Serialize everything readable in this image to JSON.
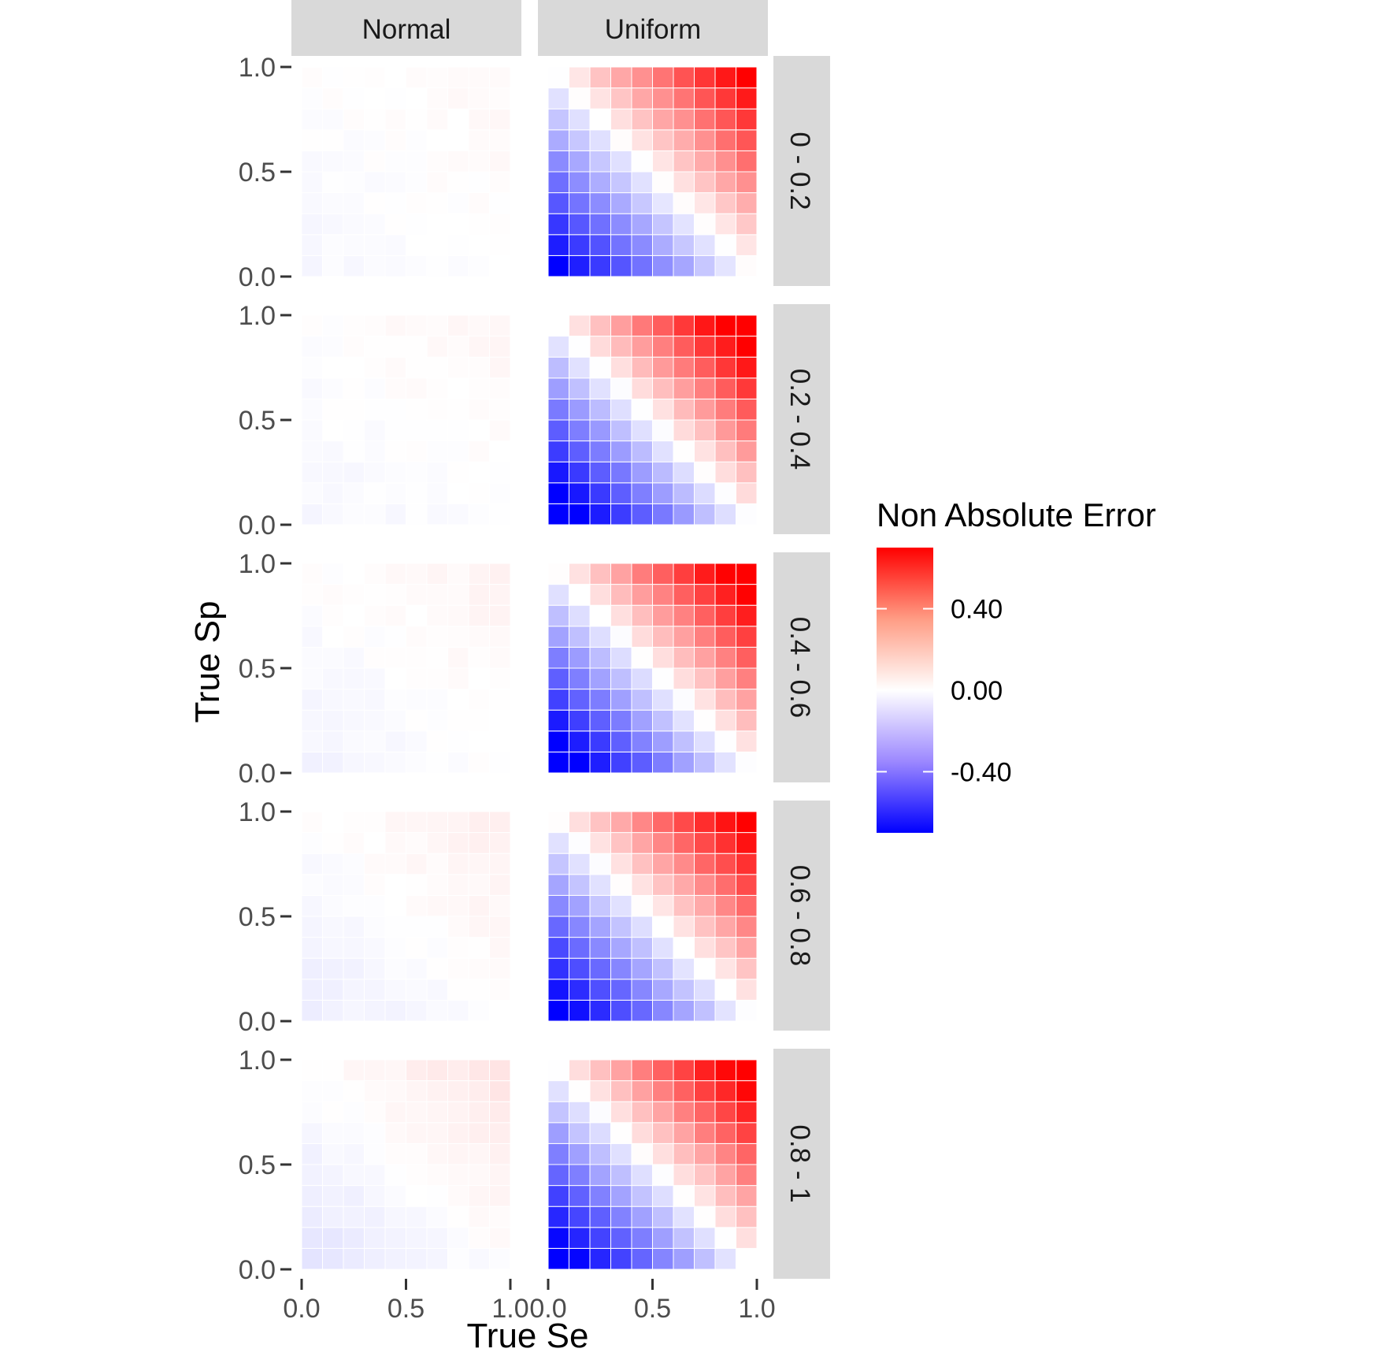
{
  "chart_data": {
    "type": "heatmap",
    "title": "",
    "xlabel": "True Se",
    "ylabel": "True Sp",
    "xlim": [
      0,
      1
    ],
    "ylim": [
      0,
      1
    ],
    "x_ticks": [
      "0.0",
      "0.5",
      "1.0"
    ],
    "y_ticks": [
      "0.0",
      "0.5",
      "1.0"
    ],
    "columns": [
      "Normal",
      "Uniform"
    ],
    "rows": [
      "0 - 0.2",
      "0.2 - 0.4",
      "0.4 - 0.6",
      "0.6 - 0.8",
      "0.8 - 1"
    ],
    "grid": false,
    "grid_size": 10,
    "se_centers": [
      0.05,
      0.15,
      0.25,
      0.35,
      0.45,
      0.55,
      0.65,
      0.75,
      0.85,
      0.95
    ],
    "sp_centers": [
      0.05,
      0.15,
      0.25,
      0.35,
      0.45,
      0.55,
      0.65,
      0.75,
      0.85,
      0.95
    ],
    "value_model": "Normal panels: error ≈ 0 (|e| ≤ 0.05); Uniform panels: error ≈ (Se + Sp - 1) × 0.8",
    "panels": [
      {
        "column": "Normal",
        "row": "0 - 0.2",
        "values_note": "near zero everywhere, faint pink top row"
      },
      {
        "column": "Normal",
        "row": "0.2 - 0.4",
        "values_note": "near zero, faint lavender bottom row"
      },
      {
        "column": "Normal",
        "row": "0.4 - 0.6",
        "values_note": "faint pink top rows, faint lavender bottom rows"
      },
      {
        "column": "Normal",
        "row": "0.6 - 0.8",
        "values_note": "pink top rows, lavender bottom-left"
      },
      {
        "column": "Normal",
        "row": "0.8 - 1",
        "values_note": "pink top-right, lavender bottom-left"
      },
      {
        "column": "Uniform",
        "row": "0 - 0.2",
        "values_note": "diagonal gradient from ≈ -0.45 (bottom-left) to ≈ +0.35 (top-right)"
      },
      {
        "column": "Uniform",
        "row": "0.2 - 0.4",
        "values_note": "diagonal gradient from ≈ -0.55 to ≈ +0.45"
      },
      {
        "column": "Uniform",
        "row": "0.4 - 0.6",
        "values_note": "diagonal gradient from ≈ -0.5 to ≈ +0.45"
      },
      {
        "column": "Uniform",
        "row": "0.6 - 0.8",
        "values_note": "diagonal gradient from ≈ -0.4 to ≈ +0.45"
      },
      {
        "column": "Uniform",
        "row": "0.8 - 1",
        "values_note": "diagonal gradient from ≈ -0.4 to ≈ +0.5"
      }
    ],
    "legend": {
      "title": "Non Absolute Error",
      "labels": [
        "0.40",
        "0.00",
        "-0.40"
      ],
      "label_values": [
        0.4,
        0.0,
        -0.4
      ],
      "range": [
        -0.7,
        0.7
      ],
      "placement": "right",
      "colors": {
        "low": "#0000ff",
        "mid": "#ffffff",
        "high": "#ff0000"
      }
    }
  }
}
